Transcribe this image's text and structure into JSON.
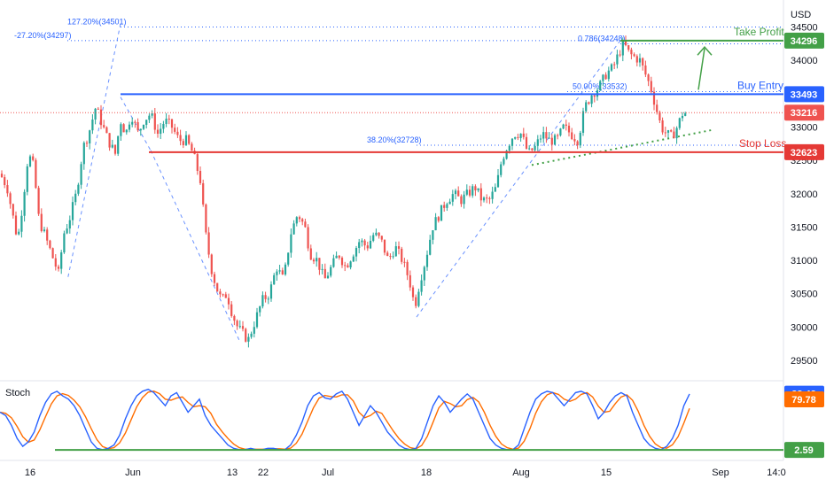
{
  "chart_data": {
    "type": "candlestick",
    "currency": "USD",
    "x_tick_labels": [
      "16",
      "Jun",
      "13",
      "22",
      "Jul",
      "18",
      "Aug",
      "15",
      "Sep",
      "14:0"
    ],
    "y_ticks": [
      29500,
      30000,
      30500,
      31000,
      31500,
      32000,
      32500,
      33000,
      33500,
      34000,
      34500
    ],
    "ylim": [
      29300,
      34800
    ],
    "price_path": [
      {
        "t": 0,
        "close": 32300
      },
      {
        "t": 8,
        "close": 32100
      },
      {
        "t": 14,
        "close": 31700
      },
      {
        "t": 20,
        "close": 31300
      },
      {
        "t": 26,
        "close": 31900
      },
      {
        "t": 32,
        "close": 32600
      },
      {
        "t": 38,
        "close": 32400
      },
      {
        "t": 44,
        "close": 31600
      },
      {
        "t": 50,
        "close": 31400
      },
      {
        "t": 58,
        "close": 31100
      },
      {
        "t": 66,
        "close": 30800
      },
      {
        "t": 72,
        "close": 31400
      },
      {
        "t": 78,
        "close": 31600
      },
      {
        "t": 86,
        "close": 32000
      },
      {
        "t": 94,
        "close": 32700
      },
      {
        "t": 100,
        "close": 32900
      },
      {
        "t": 108,
        "close": 33300
      },
      {
        "t": 115,
        "close": 33050
      },
      {
        "t": 122,
        "close": 32800
      },
      {
        "t": 130,
        "close": 32600
      },
      {
        "t": 136,
        "close": 33100
      },
      {
        "t": 142,
        "close": 32900
      },
      {
        "t": 148,
        "close": 33200
      },
      {
        "t": 156,
        "close": 32900
      },
      {
        "t": 162,
        "close": 33100
      },
      {
        "t": 170,
        "close": 33200
      },
      {
        "t": 178,
        "close": 32900
      },
      {
        "t": 186,
        "close": 33100
      },
      {
        "t": 194,
        "close": 33000
      },
      {
        "t": 202,
        "close": 32800
      },
      {
        "t": 210,
        "close": 32800
      },
      {
        "t": 218,
        "close": 32600
      },
      {
        "t": 226,
        "close": 32200
      },
      {
        "t": 232,
        "close": 31400
      },
      {
        "t": 238,
        "close": 30900
      },
      {
        "t": 244,
        "close": 30600
      },
      {
        "t": 250,
        "close": 30400
      },
      {
        "t": 256,
        "close": 30500
      },
      {
        "t": 262,
        "close": 30200
      },
      {
        "t": 268,
        "close": 30000
      },
      {
        "t": 274,
        "close": 29900
      },
      {
        "t": 280,
        "close": 29800
      },
      {
        "t": 288,
        "close": 30100
      },
      {
        "t": 296,
        "close": 30400
      },
      {
        "t": 304,
        "close": 30500
      },
      {
        "t": 312,
        "close": 30900
      },
      {
        "t": 320,
        "close": 30700
      },
      {
        "t": 328,
        "close": 31400
      },
      {
        "t": 336,
        "close": 31700
      },
      {
        "t": 344,
        "close": 31500
      },
      {
        "t": 350,
        "close": 31100
      },
      {
        "t": 358,
        "close": 31000
      },
      {
        "t": 366,
        "close": 30700
      },
      {
        "t": 374,
        "close": 30900
      },
      {
        "t": 382,
        "close": 31100
      },
      {
        "t": 390,
        "close": 30900
      },
      {
        "t": 398,
        "close": 31100
      },
      {
        "t": 406,
        "close": 31300
      },
      {
        "t": 414,
        "close": 31200
      },
      {
        "t": 422,
        "close": 31400
      },
      {
        "t": 430,
        "close": 31300
      },
      {
        "t": 438,
        "close": 31000
      },
      {
        "t": 446,
        "close": 31200
      },
      {
        "t": 454,
        "close": 31000
      },
      {
        "t": 462,
        "close": 30700
      },
      {
        "t": 468,
        "close": 30300
      },
      {
        "t": 474,
        "close": 30700
      },
      {
        "t": 480,
        "close": 31000
      },
      {
        "t": 488,
        "close": 31500
      },
      {
        "t": 496,
        "close": 31700
      },
      {
        "t": 504,
        "close": 31900
      },
      {
        "t": 512,
        "close": 32000
      },
      {
        "t": 520,
        "close": 31900
      },
      {
        "t": 528,
        "close": 32000
      },
      {
        "t": 536,
        "close": 32100
      },
      {
        "t": 544,
        "close": 31900
      },
      {
        "t": 552,
        "close": 31900
      },
      {
        "t": 560,
        "close": 32100
      },
      {
        "t": 566,
        "close": 32500
      },
      {
        "t": 572,
        "close": 32700
      },
      {
        "t": 580,
        "close": 32900
      },
      {
        "t": 588,
        "close": 32900
      },
      {
        "t": 596,
        "close": 32600
      },
      {
        "t": 604,
        "close": 32700
      },
      {
        "t": 612,
        "close": 32900
      },
      {
        "t": 620,
        "close": 32800
      },
      {
        "t": 628,
        "close": 32800
      },
      {
        "t": 636,
        "close": 33000
      },
      {
        "t": 644,
        "close": 32900
      },
      {
        "t": 652,
        "close": 32800
      },
      {
        "t": 660,
        "close": 33300
      },
      {
        "t": 668,
        "close": 33500
      },
      {
        "t": 676,
        "close": 33600
      },
      {
        "t": 684,
        "close": 33800
      },
      {
        "t": 692,
        "close": 33900
      },
      {
        "t": 698,
        "close": 34100
      },
      {
        "t": 704,
        "close": 34250
      },
      {
        "t": 710,
        "close": 34100
      },
      {
        "t": 716,
        "close": 34050
      },
      {
        "t": 722,
        "close": 34000
      },
      {
        "t": 728,
        "close": 33800
      },
      {
        "t": 734,
        "close": 33600
      },
      {
        "t": 740,
        "close": 33300
      },
      {
        "t": 746,
        "close": 33000
      },
      {
        "t": 752,
        "close": 32900
      },
      {
        "t": 758,
        "close": 32850
      },
      {
        "t": 764,
        "close": 33000
      },
      {
        "t": 770,
        "close": 33200
      },
      {
        "t": 776,
        "close": 33216
      }
    ],
    "levels": {
      "take_profit": {
        "label": "Take Profit",
        "value": 34296,
        "badge": "34296",
        "color": "#43a047"
      },
      "buy_entry": {
        "label": "Buy Entry",
        "value": 33493,
        "badge": "33493",
        "color": "#2962ff"
      },
      "stop_loss": {
        "label": "Stop Loss",
        "value": 32623,
        "badge": "32623",
        "color": "#e53935"
      },
      "last_price": {
        "value": 33216,
        "badge": "33216",
        "color": "#ef5350"
      }
    },
    "fib_labels": [
      {
        "text": "127.20%(34501)",
        "value": 34501
      },
      {
        "text": "-27.20%(34297)",
        "value": 34297
      },
      {
        "text": "0.786(34248)",
        "value": 34248
      },
      {
        "text": "50.00%(33532)",
        "value": 33532
      },
      {
        "text": "38.20%(32728)",
        "value": 32728
      }
    ],
    "stochastic": {
      "label": "Stoch",
      "k_value": "88.42",
      "d_value": "79.78",
      "baseline": "2.59",
      "k_color": "#2962ff",
      "d_color": "#ff6d00",
      "baseline_color": "#43a047",
      "ylim": [
        0,
        100
      ],
      "k_series": [
        60,
        55,
        40,
        20,
        8,
        15,
        30,
        55,
        75,
        88,
        92,
        85,
        80,
        70,
        55,
        35,
        15,
        5,
        3,
        5,
        10,
        25,
        50,
        70,
        85,
        92,
        95,
        90,
        80,
        70,
        85,
        90,
        75,
        60,
        70,
        80,
        55,
        40,
        30,
        20,
        10,
        5,
        3,
        3,
        5,
        3,
        3,
        5,
        5,
        3,
        3,
        10,
        25,
        45,
        70,
        85,
        90,
        82,
        80,
        88,
        92,
        80,
        60,
        40,
        55,
        70,
        60,
        45,
        30,
        20,
        10,
        5,
        3,
        5,
        20,
        45,
        70,
        85,
        75,
        60,
        70,
        80,
        88,
        80,
        60,
        40,
        20,
        10,
        5,
        3,
        3,
        10,
        35,
        60,
        80,
        88,
        92,
        90,
        80,
        70,
        80,
        90,
        92,
        88,
        70,
        50,
        60,
        75,
        85,
        90,
        85,
        60,
        40,
        20,
        10,
        5,
        3,
        8,
        20,
        40,
        70,
        88
      ]
    }
  }
}
